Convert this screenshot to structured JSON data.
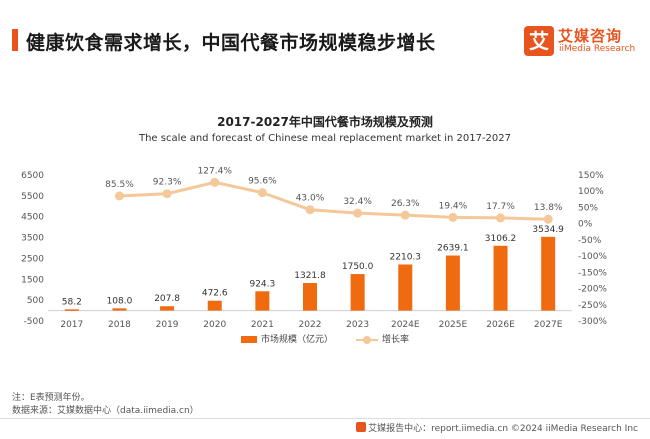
{
  "header": {
    "title": "健康饮食需求增长，中国代餐市场规模稳步增长"
  },
  "logo": {
    "mark": "艾",
    "name_cn": "艾媒咨询",
    "name_en": "iiMedia Research"
  },
  "colors": {
    "accent": "#e8541e",
    "bar": "#f06b10",
    "line": "#f5c89a"
  },
  "chart_data": {
    "type": "bar",
    "title": "2017-2027年中国代餐市场规模及预测",
    "subtitle": "The scale and forecast of Chinese meal replacement market in 2017-2027",
    "categories": [
      "2017",
      "2018",
      "2019",
      "2020",
      "2021",
      "2022",
      "2023",
      "2024E",
      "2025E",
      "2026E",
      "2027E"
    ],
    "series": [
      {
        "name": "市场规模（亿元）",
        "type": "bar",
        "axis": "left",
        "values": [
          58.2,
          108.0,
          207.8,
          472.6,
          924.3,
          1321.8,
          1750.0,
          2210.3,
          2639.1,
          3106.2,
          3534.9
        ],
        "labels": [
          "58.2",
          "108.0",
          "207.8",
          "472.6",
          "924.3",
          "1321.8",
          "1750.0",
          "2210.3",
          "2639.1",
          "3106.2",
          "3534.9"
        ]
      },
      {
        "name": "增长率",
        "type": "line",
        "axis": "right",
        "values": [
          null,
          85.5,
          92.3,
          127.4,
          95.6,
          43.0,
          32.4,
          26.3,
          19.4,
          17.7,
          13.8
        ],
        "labels": [
          "",
          "85.5%",
          "92.3%",
          "127.4%",
          "95.6%",
          "43.0%",
          "32.4%",
          "26.3%",
          "19.4%",
          "17.7%",
          "13.8%"
        ]
      }
    ],
    "left_axis": {
      "ylim": [
        -500,
        6500
      ],
      "ticks": [
        -500,
        500,
        1500,
        2500,
        3500,
        4500,
        5500,
        6500
      ],
      "tick_labels": [
        "-500",
        "500",
        "1500",
        "2500",
        "3500",
        "4500",
        "5500",
        "6500"
      ]
    },
    "right_axis": {
      "ylim": [
        -300,
        150
      ],
      "ticks": [
        -300,
        -250,
        -200,
        -150,
        -100,
        -50,
        0,
        50,
        100,
        150
      ],
      "tick_labels": [
        "-300%",
        "-250%",
        "-200%",
        "-150%",
        "-100%",
        "-50%",
        "0%",
        "50%",
        "100%",
        "150%"
      ]
    },
    "legend_position": "bottom",
    "grid": false
  },
  "notes": {
    "note": "注：E表预测年份。",
    "source": "数据来源：艾媒数据中心（data.iimedia.cn）"
  },
  "footer": {
    "text": "艾媒报告中心：report.iimedia.cn   ©2024  iiMedia Research  Inc"
  }
}
